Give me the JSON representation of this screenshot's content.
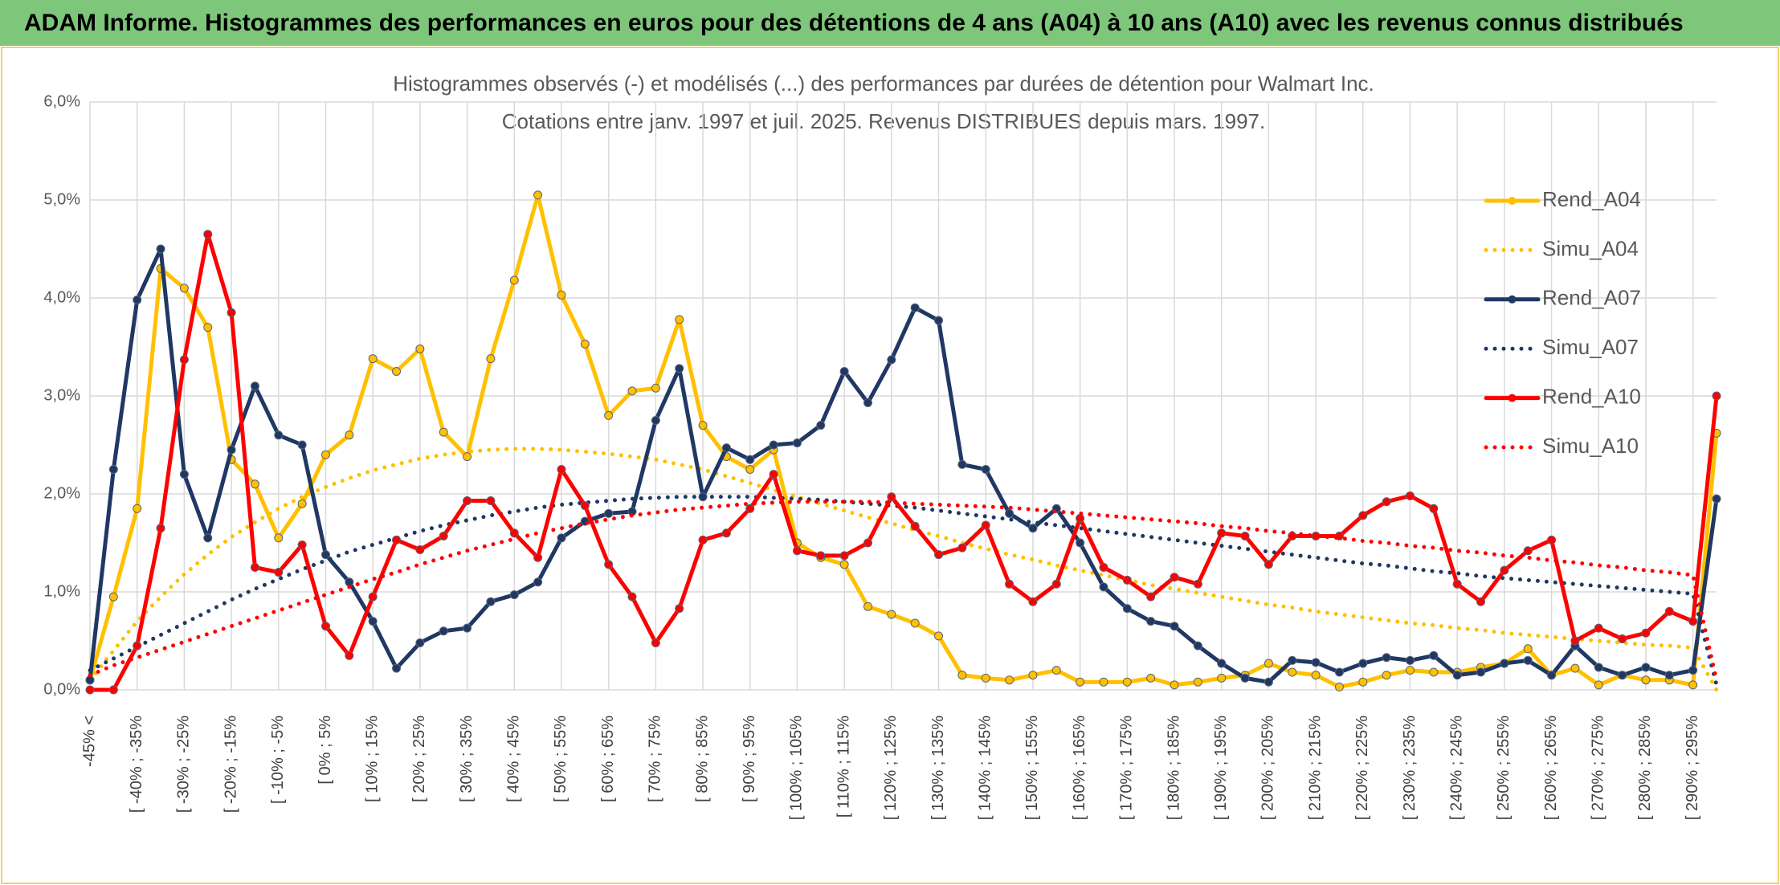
{
  "header": {
    "title": "ADAM Informe. Histogrammes des performances en euros pour des détentions de 4 ans (A04) à 10 ans (A10) avec les revenus connus distribués"
  },
  "chart_data": {
    "type": "line",
    "title": "Histogrammes observés (-) et modélisés (...) des performances par durées de détention pour Walmart Inc.",
    "subtitle": "Cotations entre janv. 1997 et juil. 2025. Revenus DISTRIBUES depuis mars. 1997.",
    "categories": [
      "-45% <",
      null,
      "[ -40% ; -35%",
      null,
      "[ -30% ; -25%",
      null,
      "[ -20% ; -15%",
      null,
      "[ -10% ; -5%",
      null,
      "[ 0% ; 5%",
      null,
      "[ 10% ; 15%",
      null,
      "[ 20% ; 25%",
      null,
      "[ 30% ; 35%",
      null,
      "[ 40% ; 45%",
      null,
      "[ 50% ; 55%",
      null,
      "[ 60% ; 65%",
      null,
      "[ 70% ; 75%",
      null,
      "[ 80% ; 85%",
      null,
      "[ 90% ; 95%",
      null,
      "[ 100% ; 105%",
      null,
      "[ 110% ; 115%",
      null,
      "[ 120% ; 125%",
      null,
      "[ 130% ; 135%",
      null,
      "[ 140% ; 145%",
      null,
      "[ 150% ; 155%",
      null,
      "[ 160% ; 165%",
      null,
      "[ 170% ; 175%",
      null,
      "[ 180% ; 185%",
      null,
      "[ 190% ; 195%",
      null,
      "[ 200% ; 205%",
      null,
      "[ 210% ; 215%",
      null,
      "[ 220% ; 225%",
      null,
      "[ 230% ; 235%",
      null,
      "[ 240% ; 245%",
      null,
      "[ 250% ; 255%",
      null,
      "[ 260% ; 265%",
      null,
      "[ 270% ; 275%",
      null,
      "[ 280% ; 285%",
      null,
      "[ 290% ; 295%",
      null
    ],
    "series": [
      {
        "name": "Rend_A04",
        "color": "#FFC000",
        "style": "solid",
        "markers": true,
        "values": [
          0.1,
          0.95,
          1.85,
          4.3,
          4.1,
          3.7,
          2.35,
          2.1,
          1.55,
          1.9,
          2.4,
          2.6,
          3.38,
          3.25,
          3.48,
          2.63,
          2.38,
          3.38,
          4.18,
          5.05,
          4.03,
          3.53,
          2.8,
          3.05,
          3.08,
          3.78,
          2.7,
          2.38,
          2.25,
          2.45,
          1.5,
          1.35,
          1.28,
          0.85,
          0.77,
          0.68,
          0.55,
          0.15,
          0.12,
          0.1,
          0.15,
          0.2,
          0.08,
          0.08,
          0.08,
          0.12,
          0.05,
          0.08,
          0.12,
          0.15,
          0.27,
          0.18,
          0.15,
          0.03,
          0.08,
          0.15,
          0.2,
          0.18,
          0.18,
          0.23,
          0.27,
          0.42,
          0.15,
          0.22,
          0.05,
          0.15,
          0.1,
          0.1,
          0.05,
          2.62
        ]
      },
      {
        "name": "Simu_A04",
        "color": "#FFC000",
        "style": "dotted",
        "markers": false,
        "values": [
          0.1,
          0.4,
          0.7,
          0.95,
          1.18,
          1.38,
          1.56,
          1.71,
          1.85,
          1.97,
          2.07,
          2.16,
          2.24,
          2.3,
          2.36,
          2.4,
          2.43,
          2.45,
          2.46,
          2.46,
          2.45,
          2.43,
          2.41,
          2.38,
          2.35,
          2.3,
          2.25,
          2.18,
          2.11,
          2.04,
          1.97,
          1.9,
          1.83,
          1.76,
          1.7,
          1.63,
          1.57,
          1.5,
          1.44,
          1.38,
          1.33,
          1.27,
          1.22,
          1.17,
          1.12,
          1.07,
          1.03,
          0.99,
          0.95,
          0.91,
          0.87,
          0.84,
          0.8,
          0.77,
          0.74,
          0.71,
          0.68,
          0.66,
          0.63,
          0.61,
          0.58,
          0.56,
          0.54,
          0.52,
          0.5,
          0.48,
          0.46,
          0.45,
          0.43,
          0.0
        ]
      },
      {
        "name": "Rend_A07",
        "color": "#1F3864",
        "style": "solid",
        "markers": true,
        "values": [
          0.1,
          2.25,
          3.98,
          4.5,
          2.2,
          1.55,
          2.45,
          3.1,
          2.6,
          2.5,
          1.38,
          1.1,
          0.7,
          0.22,
          0.48,
          0.6,
          0.63,
          0.9,
          0.97,
          1.1,
          1.55,
          1.72,
          1.8,
          1.82,
          2.75,
          3.28,
          1.97,
          2.47,
          2.35,
          2.5,
          2.52,
          2.7,
          3.25,
          2.93,
          3.37,
          3.9,
          3.77,
          2.3,
          2.25,
          1.8,
          1.65,
          1.85,
          1.5,
          1.05,
          0.83,
          0.7,
          0.65,
          0.45,
          0.27,
          0.12,
          0.08,
          0.3,
          0.28,
          0.18,
          0.27,
          0.33,
          0.3,
          0.35,
          0.15,
          0.18,
          0.27,
          0.3,
          0.15,
          0.45,
          0.23,
          0.15,
          0.23,
          0.15,
          0.2,
          1.95
        ]
      },
      {
        "name": "Simu_A07",
        "color": "#1F3864",
        "style": "dotted",
        "markers": false,
        "values": [
          0.2,
          0.32,
          0.44,
          0.56,
          0.68,
          0.8,
          0.92,
          1.03,
          1.13,
          1.23,
          1.32,
          1.41,
          1.48,
          1.55,
          1.62,
          1.68,
          1.73,
          1.78,
          1.82,
          1.86,
          1.89,
          1.91,
          1.93,
          1.95,
          1.96,
          1.97,
          1.97,
          1.97,
          1.97,
          1.96,
          1.95,
          1.94,
          1.92,
          1.9,
          1.88,
          1.86,
          1.83,
          1.8,
          1.77,
          1.74,
          1.71,
          1.68,
          1.65,
          1.62,
          1.59,
          1.56,
          1.53,
          1.5,
          1.47,
          1.44,
          1.41,
          1.38,
          1.35,
          1.32,
          1.29,
          1.27,
          1.24,
          1.21,
          1.19,
          1.16,
          1.14,
          1.12,
          1.1,
          1.08,
          1.06,
          1.04,
          1.02,
          1.0,
          0.98,
          0.05
        ]
      },
      {
        "name": "Rend_A10",
        "color": "#FF0000",
        "style": "solid",
        "markers": true,
        "values": [
          0,
          0,
          0.45,
          1.65,
          3.37,
          4.65,
          3.85,
          1.25,
          1.2,
          1.48,
          0.65,
          0.35,
          0.95,
          1.53,
          1.43,
          1.57,
          1.93,
          1.93,
          1.6,
          1.35,
          2.25,
          1.88,
          1.28,
          0.95,
          0.48,
          0.83,
          1.53,
          1.6,
          1.85,
          2.2,
          1.42,
          1.37,
          1.37,
          1.5,
          1.97,
          1.67,
          1.38,
          1.45,
          1.68,
          1.08,
          0.9,
          1.08,
          1.75,
          1.25,
          1.12,
          0.95,
          1.15,
          1.08,
          1.6,
          1.57,
          1.28,
          1.57,
          1.57,
          1.57,
          1.78,
          1.92,
          1.98,
          1.85,
          1.08,
          0.9,
          1.22,
          1.42,
          1.53,
          0.5,
          0.63,
          0.52,
          0.58,
          0.8,
          0.7,
          3.0
        ]
      },
      {
        "name": "Simu_A10",
        "color": "#FF0000",
        "style": "dotted",
        "markers": false,
        "values": [
          0.15,
          0.25,
          0.33,
          0.41,
          0.49,
          0.57,
          0.65,
          0.73,
          0.81,
          0.89,
          0.97,
          1.05,
          1.13,
          1.2,
          1.28,
          1.35,
          1.42,
          1.48,
          1.54,
          1.6,
          1.65,
          1.7,
          1.74,
          1.78,
          1.81,
          1.84,
          1.86,
          1.88,
          1.9,
          1.91,
          1.92,
          1.92,
          1.92,
          1.92,
          1.91,
          1.9,
          1.89,
          1.88,
          1.87,
          1.86,
          1.84,
          1.82,
          1.8,
          1.78,
          1.76,
          1.74,
          1.72,
          1.7,
          1.67,
          1.65,
          1.62,
          1.6,
          1.57,
          1.55,
          1.52,
          1.5,
          1.47,
          1.45,
          1.42,
          1.4,
          1.37,
          1.35,
          1.32,
          1.3,
          1.27,
          1.25,
          1.22,
          1.2,
          1.17,
          0.1
        ]
      }
    ],
    "ylim": [
      0,
      6
    ],
    "yticks": [
      {
        "value": 0,
        "label": "0,0%"
      },
      {
        "value": 1,
        "label": "1,0%"
      },
      {
        "value": 2,
        "label": "2,0%"
      },
      {
        "value": 3,
        "label": "3,0%"
      },
      {
        "value": 4,
        "label": "4,0%"
      },
      {
        "value": 5,
        "label": "5,0%"
      },
      {
        "value": 6,
        "label": "6,0%"
      }
    ],
    "grid": true,
    "legend": "right"
  }
}
